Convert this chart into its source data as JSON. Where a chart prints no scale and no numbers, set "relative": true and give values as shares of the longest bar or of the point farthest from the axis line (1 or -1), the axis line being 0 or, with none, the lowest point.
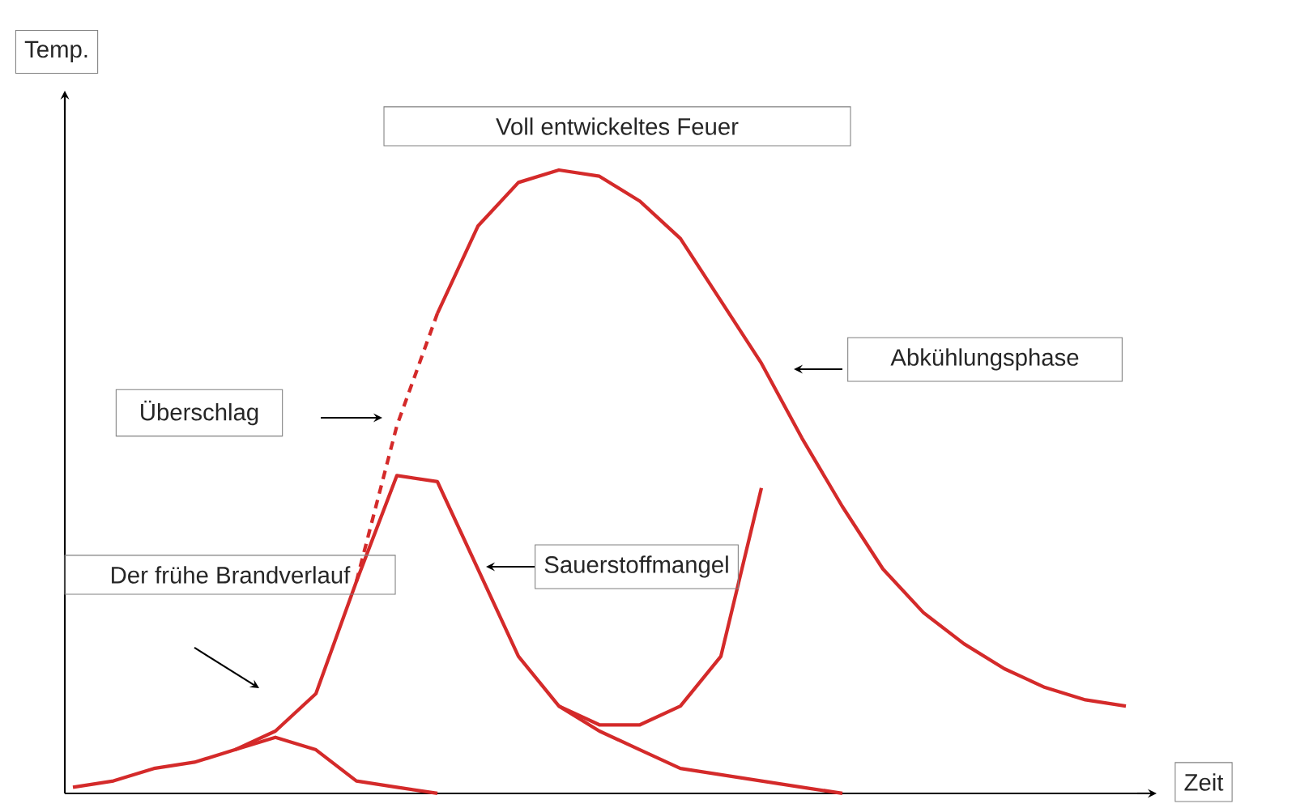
{
  "chart_data": {
    "type": "line",
    "relative": true,
    "xlabel": "Zeit",
    "ylabel": "Temp.",
    "categories": [
      null,
      null,
      null,
      null,
      null,
      null,
      null,
      null,
      null,
      null,
      null,
      null,
      null,
      null,
      null,
      null,
      null,
      null,
      null,
      null,
      null,
      null,
      null,
      null,
      null,
      null,
      null
    ],
    "series": [
      {
        "color": "#d42a2a",
        "values": [
          0.01,
          0.02,
          0.04,
          0.05,
          0.07,
          0.1,
          0.16,
          0.34,
          0.51,
          0.5,
          0.36,
          0.22,
          0.14,
          0.1,
          0.07,
          0.04,
          0.03,
          0.02,
          0.01,
          0,
          null,
          null,
          null,
          null,
          null,
          null,
          null
        ]
      },
      {
        "color": "#d42a2a",
        "line_style": "dashed",
        "values": [
          null,
          null,
          null,
          null,
          null,
          null,
          null,
          0.34,
          0.59,
          0.77,
          null,
          null,
          null,
          null,
          null,
          null,
          null,
          null,
          null,
          null,
          null,
          null,
          null,
          null,
          null,
          null,
          null
        ]
      },
      {
        "color": "#d42a2a",
        "values": [
          null,
          null,
          null,
          null,
          null,
          null,
          null,
          null,
          null,
          0.77,
          0.91,
          0.98,
          1.0,
          0.99,
          0.95,
          0.89,
          0.79,
          0.69,
          0.57,
          0.46,
          0.36,
          0.29,
          0.24,
          0.2,
          0.17,
          0.15,
          0.14
        ]
      },
      {
        "color": "#d42a2a",
        "values": [
          null,
          null,
          null,
          null,
          null,
          null,
          null,
          null,
          null,
          null,
          null,
          null,
          0.14,
          0.11,
          0.11,
          0.14,
          0.22,
          0.49,
          null,
          null,
          null,
          null,
          null,
          null,
          null,
          null,
          null
        ]
      },
      {
        "color": "#d42a2a",
        "values": [
          null,
          null,
          null,
          null,
          0.07,
          0.09,
          0.07,
          0.02,
          0.01,
          0,
          null,
          null,
          null,
          null,
          null,
          null,
          null,
          null,
          null,
          null,
          null,
          null,
          null,
          null,
          null,
          null,
          null
        ]
      }
    ],
    "annotations": [
      "Voll entwickeltes Feuer",
      "Überschlag",
      "Der frühe Brandverlauf",
      "Abkühlungsphase",
      "Sauerstoffmangel"
    ]
  }
}
